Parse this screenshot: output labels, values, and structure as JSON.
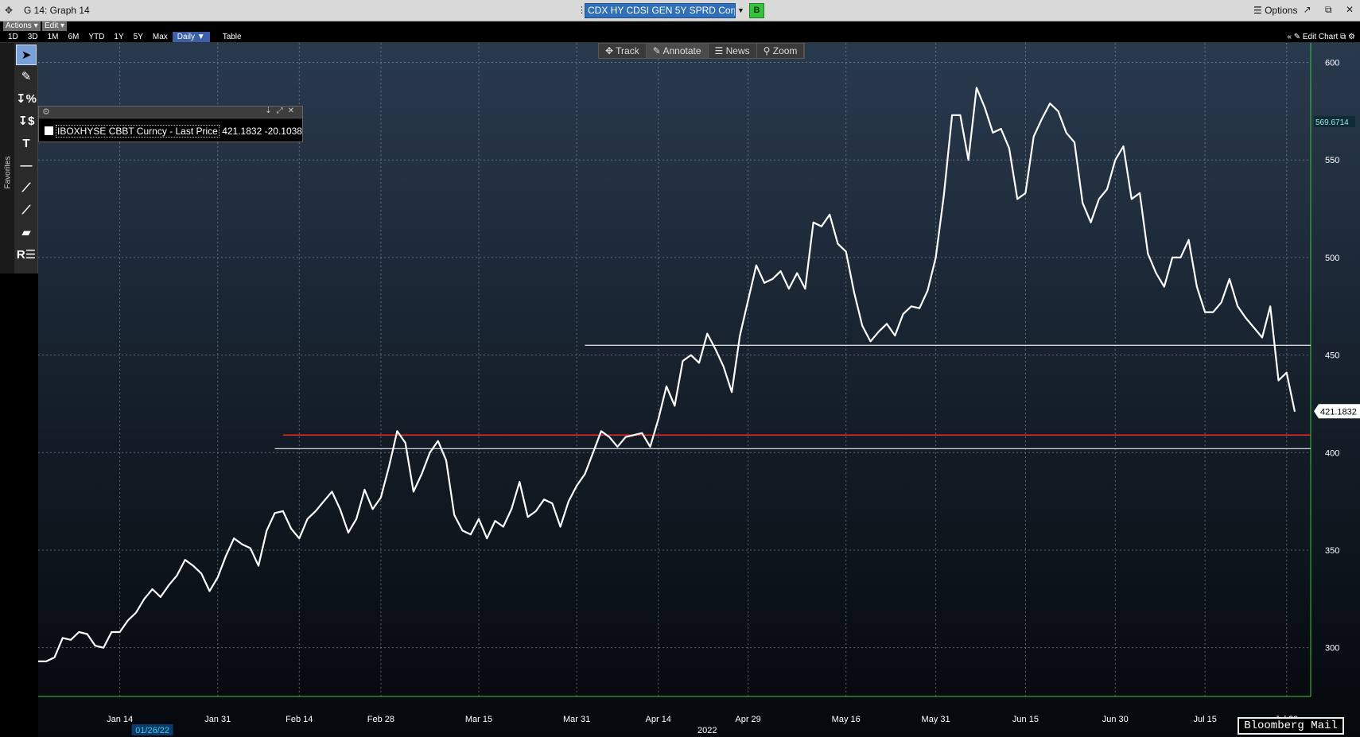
{
  "window": {
    "title": "G 14: Graph 14",
    "security": "CDX HY CDSI GEN 5Y SPRD Corp",
    "security_badge": "B",
    "options_label": "Options",
    "controls": [
      "↗",
      "⧉",
      "✕"
    ]
  },
  "toolbar": {
    "actions_label": "Actions ▾",
    "edit_label": "Edit ▾",
    "periods": [
      "1D",
      "3D",
      "1M",
      "6M",
      "YTD",
      "1Y",
      "5Y",
      "Max"
    ],
    "frequency": "Daily ▼",
    "table_label": "Table",
    "edit_chart_label": "Edit Chart"
  },
  "chart_tools": [
    "Track",
    "Annotate",
    "News",
    "Zoom"
  ],
  "palette": {
    "favorites_label": "Favorites",
    "tools": [
      "cursor-icon",
      "pen-icon",
      "percent-icon",
      "dollar-icon",
      "text-icon",
      "hline-icon",
      "trendline-icon",
      "ray-icon",
      "channel-icon",
      "regression-icon"
    ]
  },
  "legend": {
    "name": "IBOXHYSE CBBT Curncy - Last Price",
    "value": "421.1832",
    "change": "-20.1038"
  },
  "footer": {
    "mail_label": "Bloomberg Mail"
  },
  "colors": {
    "series": "#ffffff",
    "red_line": "#ff2a2a",
    "white_level": "#d8d8d8",
    "last_label_bg": "#ffffff",
    "alt_label_bg": "#9fe7ef"
  },
  "chart_data": {
    "type": "line",
    "title": "",
    "xlabel": "2022",
    "ylabel": "",
    "ylim": [
      275,
      610
    ],
    "y_ticks": [
      300,
      350,
      400,
      450,
      500,
      550,
      600
    ],
    "x_ticks": [
      "Jan 14",
      "Jan 31",
      "Feb 14",
      "Feb 28",
      "Mar 15",
      "Mar 31",
      "Apr 14",
      "Apr 29",
      "May 16",
      "May 31",
      "Jun 15",
      "Jun 30",
      "Jul 15",
      "Jul 29"
    ],
    "x_tick_positions": [
      10,
      22,
      32,
      42,
      54,
      66,
      76,
      87,
      99,
      110,
      121,
      132,
      143,
      153
    ],
    "x_highlight": "01/26/22",
    "last_value_label": "421.1832",
    "other_value_label": "569.6714",
    "horizontal_levels": [
      {
        "name": "red-level",
        "value": 409,
        "start_index": 30
      },
      {
        "name": "white-level-upper",
        "value": 455,
        "start_index": 67
      },
      {
        "name": "white-level-lower",
        "value": 402,
        "start_index": 29
      }
    ],
    "grid": true,
    "series": [
      {
        "name": "IBOXHYSE CBBT Curncy - Last Price",
        "values": [
          293,
          293,
          295,
          305,
          304,
          308,
          307,
          301,
          300,
          308,
          308,
          314,
          318,
          325,
          330,
          326,
          332,
          337,
          345,
          342,
          338,
          329,
          336,
          347,
          356,
          353,
          351,
          342,
          360,
          369,
          370,
          361,
          356,
          366,
          370,
          375,
          380,
          371,
          359,
          366,
          381,
          371,
          377,
          393,
          411,
          405,
          380,
          389,
          400,
          406,
          396,
          368,
          360,
          358,
          366,
          356,
          365,
          362,
          371,
          385,
          367,
          370,
          376,
          374,
          362,
          375,
          383,
          389,
          400,
          411,
          408,
          403,
          408,
          409,
          410,
          403,
          417,
          434,
          424,
          447,
          450,
          446,
          461,
          453,
          444,
          431,
          460,
          478,
          496,
          487,
          489,
          493,
          484,
          492,
          484,
          518,
          516,
          522,
          507,
          503,
          482,
          465,
          457,
          462,
          466,
          460,
          471,
          475,
          474,
          483,
          500,
          532,
          573,
          573,
          550,
          587,
          577,
          564,
          566,
          556,
          530,
          533,
          562,
          571,
          579,
          575,
          564,
          559,
          528,
          518,
          530,
          535,
          550,
          557,
          530,
          533,
          502,
          492,
          485,
          500,
          500,
          509,
          485,
          472,
          472,
          477,
          489,
          475,
          469,
          464,
          459,
          475,
          437,
          441,
          421
        ]
      }
    ]
  }
}
